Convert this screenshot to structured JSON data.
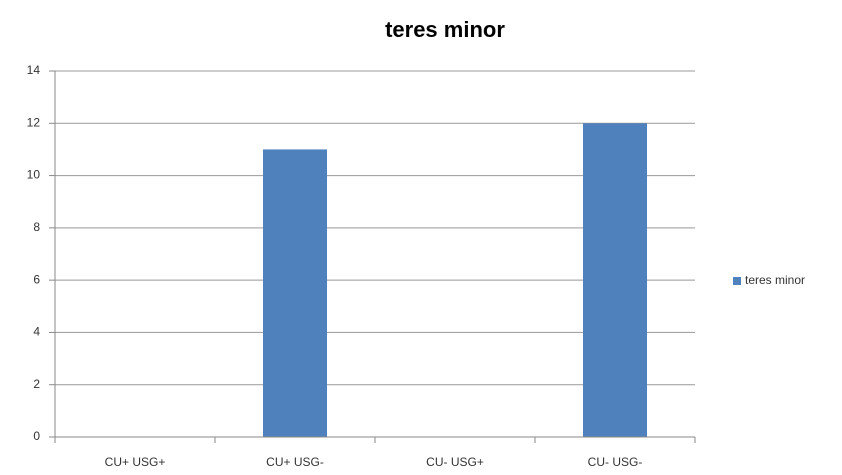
{
  "chart_data": {
    "type": "bar",
    "title": "teres minor",
    "categories": [
      "CU+ USG+",
      "CU+ USG-",
      "CU- USG+",
      "CU- USG-"
    ],
    "series": [
      {
        "name": "teres minor",
        "color": "#4f81bd",
        "values": [
          0,
          11,
          0,
          12
        ]
      }
    ],
    "ylim": [
      0,
      14
    ],
    "yticks": [
      0,
      2,
      4,
      6,
      8,
      10,
      12,
      14
    ],
    "grid": true,
    "legend": "right"
  }
}
